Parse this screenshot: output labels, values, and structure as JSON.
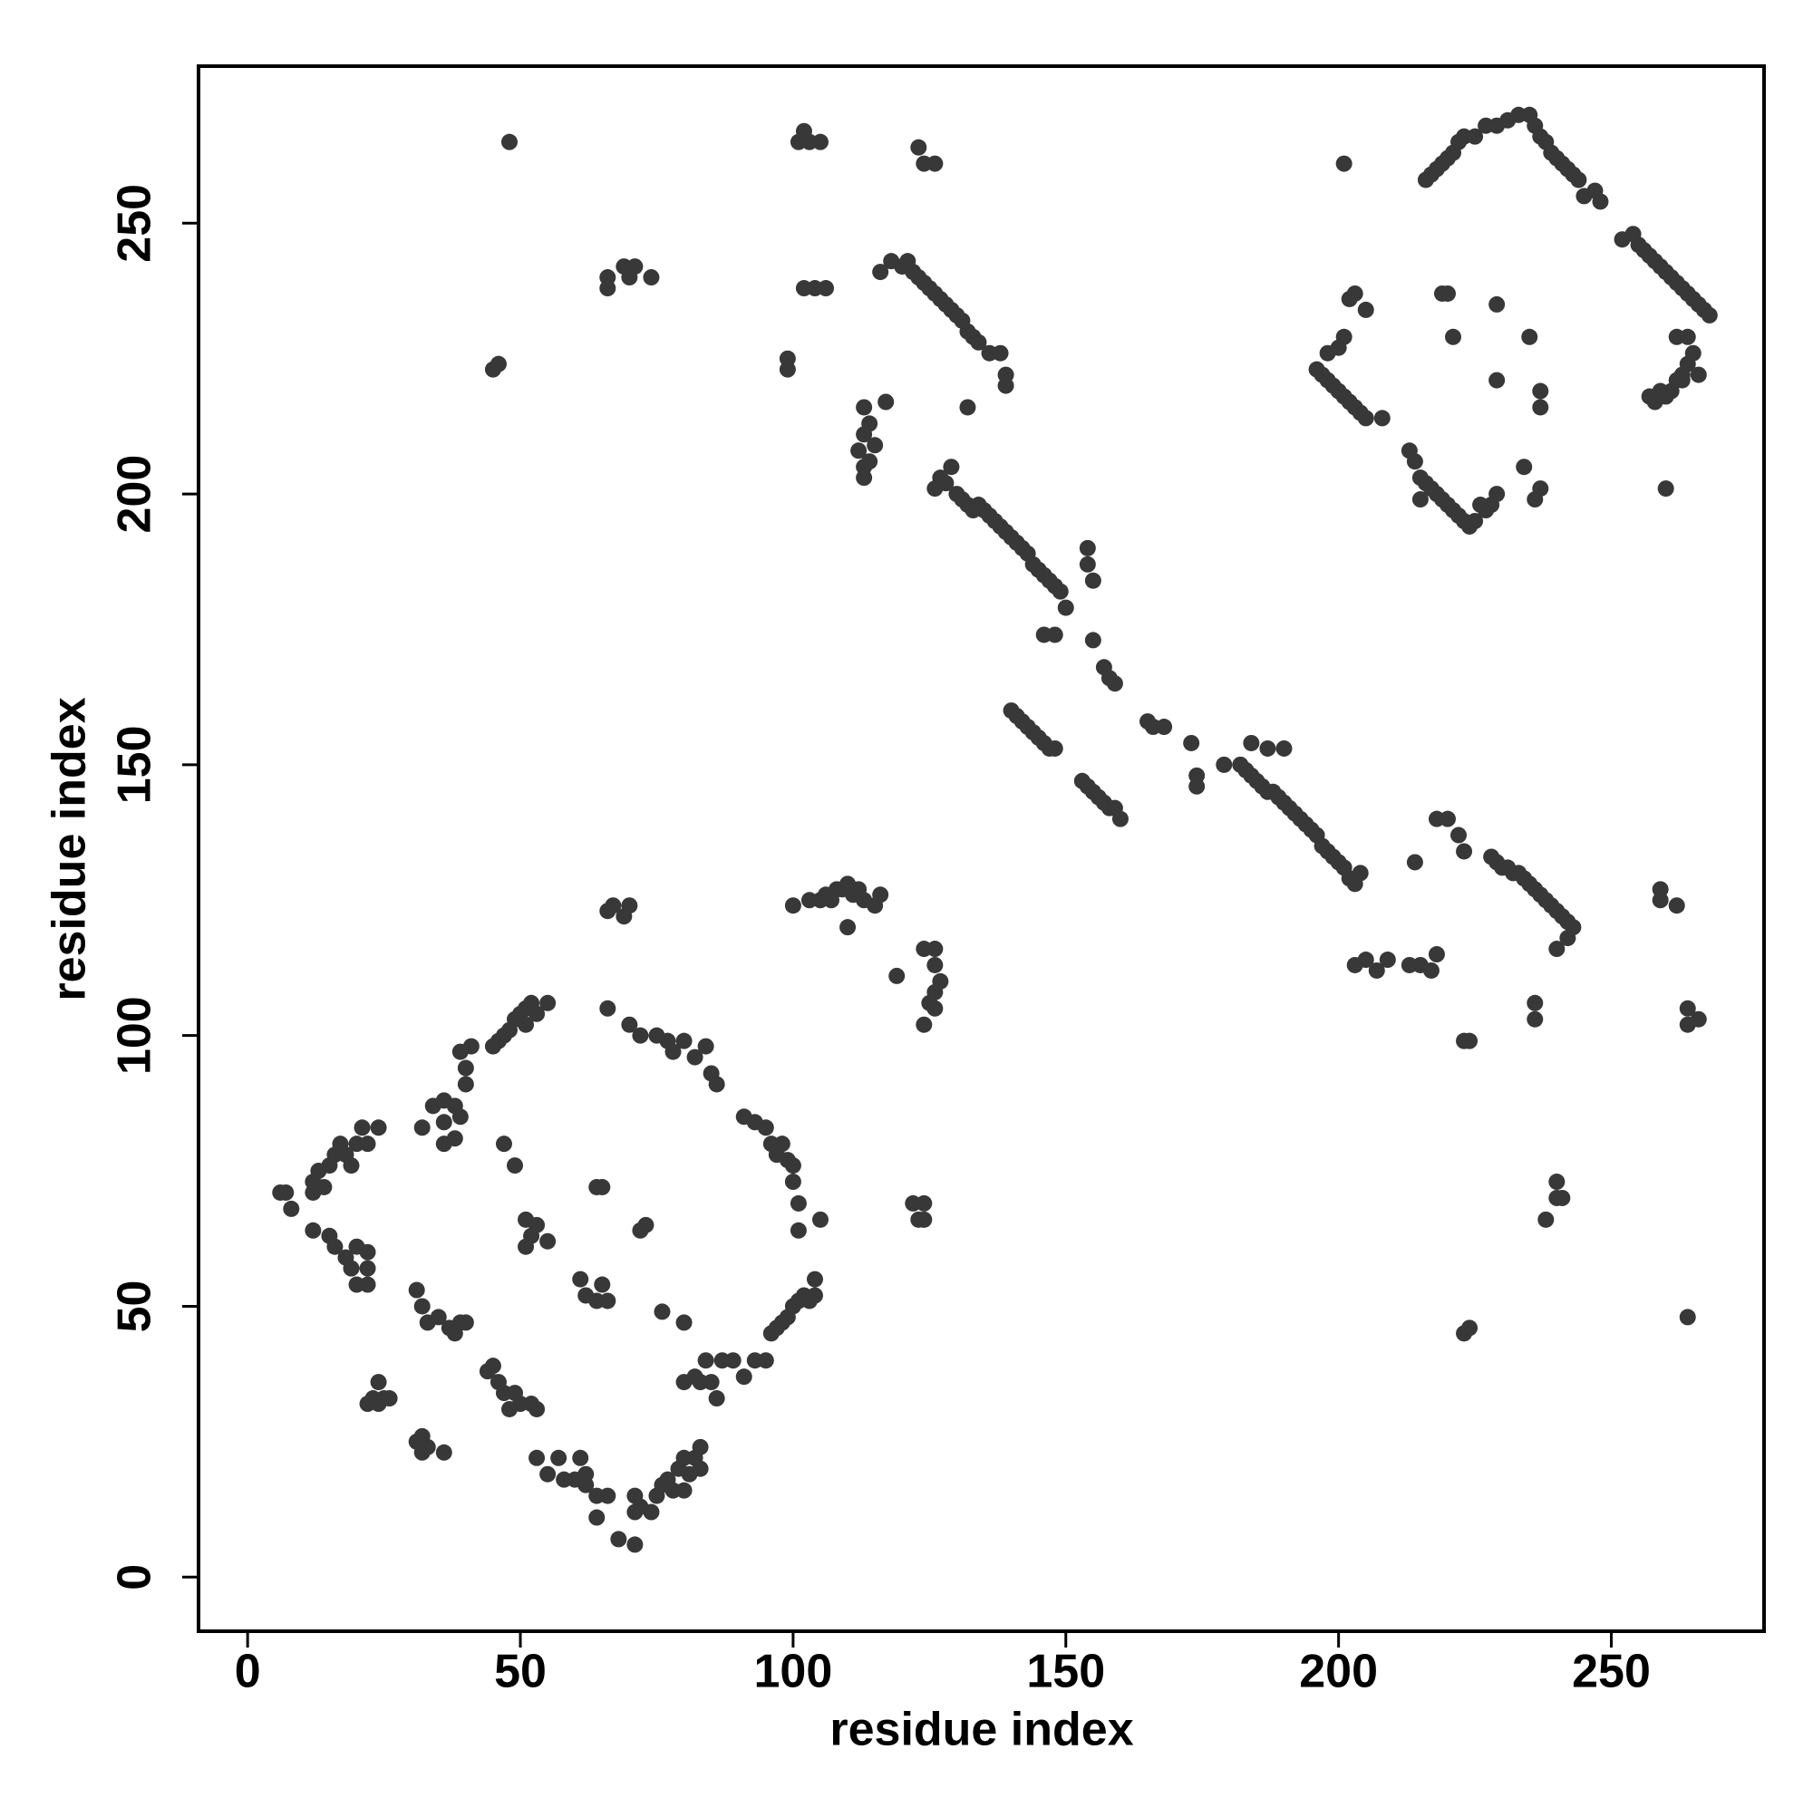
{
  "chart_data": {
    "type": "scatter",
    "xlabel": "residue index",
    "ylabel": "residue index",
    "xlim": [
      -9,
      278
    ],
    "ylim": [
      -10,
      279
    ],
    "xticks": [
      0,
      50,
      100,
      150,
      200,
      250
    ],
    "yticks": [
      0,
      50,
      100,
      150,
      200,
      250
    ],
    "grid": false,
    "color": "#383838",
    "series": [
      {
        "x": [
          6,
          7,
          8,
          12,
          12,
          12,
          13,
          14,
          15,
          16,
          17,
          18,
          19,
          20,
          21,
          22,
          24
        ],
        "y": [
          71,
          71,
          68,
          64,
          71,
          73,
          75,
          72,
          76,
          78,
          80,
          78,
          76,
          80,
          83,
          80,
          83
        ]
      },
      {
        "x": [
          15,
          16,
          18,
          19,
          20,
          22,
          22,
          22,
          20,
          23,
          24,
          25,
          22,
          24,
          26
        ],
        "y": [
          63,
          61,
          59,
          57,
          54,
          57,
          54,
          60,
          61,
          33,
          32,
          33,
          32,
          36,
          33
        ]
      },
      {
        "x": [
          31,
          32,
          33,
          35,
          37,
          38,
          39,
          40,
          31,
          32,
          33,
          36,
          32
        ],
        "y": [
          53,
          50,
          47,
          48,
          46,
          45,
          47,
          47,
          25,
          23,
          24,
          23,
          26
        ]
      },
      {
        "x": [
          44,
          45,
          46,
          47,
          48,
          50,
          49,
          53,
          52,
          53,
          55,
          57,
          58,
          60,
          61,
          62,
          62,
          64,
          64,
          66
        ],
        "y": [
          38,
          39,
          36,
          34,
          31,
          32,
          34,
          31,
          32,
          22,
          19,
          22,
          18,
          18,
          22,
          19,
          17,
          15,
          11,
          15
        ]
      },
      {
        "x": [
          68,
          71,
          71,
          71,
          72,
          74,
          75,
          76,
          77,
          78,
          79,
          80,
          81,
          82,
          83,
          83,
          80
        ],
        "y": [
          7,
          6,
          12,
          15,
          13,
          12,
          15,
          17,
          18,
          16,
          20,
          22,
          19,
          22,
          20,
          24,
          16
        ]
      },
      {
        "x": [
          80,
          82,
          83,
          84,
          85,
          86,
          87,
          89,
          91,
          93,
          95,
          96,
          97,
          98,
          99,
          100,
          101,
          102,
          103,
          104,
          104
        ],
        "y": [
          36,
          37,
          36,
          40,
          36,
          33,
          40,
          40,
          37,
          40,
          40,
          45,
          46,
          47,
          48,
          50,
          51,
          52,
          51,
          52,
          55
        ]
      },
      {
        "x": [
          70,
          72,
          75,
          77,
          78,
          80,
          82,
          84,
          85,
          86,
          91,
          93,
          95,
          96,
          97,
          98,
          99,
          100,
          100,
          101,
          101,
          105,
          66
        ],
        "y": [
          102,
          100,
          100,
          99,
          97,
          99,
          96,
          98,
          93,
          91,
          85,
          84,
          83,
          80,
          78,
          80,
          77,
          76,
          73,
          69,
          64,
          66,
          105
        ]
      },
      {
        "x": [
          32,
          34,
          36,
          36,
          38,
          39,
          40,
          40,
          41,
          39,
          38,
          36,
          45,
          46,
          47,
          48,
          49,
          50,
          51,
          52,
          53,
          55,
          51
        ],
        "y": [
          83,
          87,
          84,
          80,
          87,
          85,
          91,
          94,
          98,
          97,
          81,
          88,
          98,
          99,
          100,
          101,
          103,
          104,
          105,
          106,
          104,
          106,
          102
        ]
      },
      {
        "x": [
          47,
          49,
          51,
          52,
          53,
          55,
          51,
          65,
          64,
          72,
          73,
          61,
          62,
          64,
          65,
          66,
          76,
          80,
          66,
          67,
          69,
          70
        ],
        "y": [
          80,
          76,
          66,
          63,
          65,
          62,
          61,
          72,
          72,
          64,
          65,
          55,
          52,
          51,
          54,
          51,
          49,
          47,
          123,
          124,
          122,
          124
        ]
      },
      {
        "x": [
          216,
          217,
          218,
          219,
          220,
          221,
          222,
          223,
          225,
          227,
          229,
          231,
          233,
          235,
          236,
          237,
          238,
          239,
          240,
          241,
          242,
          243,
          244,
          245,
          247,
          248
        ],
        "y": [
          258,
          259,
          260,
          261,
          262,
          263,
          265,
          266,
          266,
          268,
          268,
          269,
          270,
          270,
          268,
          266,
          265,
          263,
          262,
          261,
          260,
          259,
          258,
          255,
          256,
          254
        ]
      },
      {
        "x": [
          252,
          254,
          255,
          256,
          257,
          258,
          259,
          260,
          261,
          262,
          263,
          264,
          265,
          266,
          267,
          268,
          262,
          264,
          257,
          258,
          259,
          260,
          261,
          262,
          263,
          264,
          265,
          266,
          263
        ],
        "y": [
          247,
          248,
          246,
          245,
          244,
          243,
          242,
          241,
          240,
          239,
          238,
          237,
          236,
          235,
          234,
          233,
          229,
          229,
          218,
          217,
          219,
          218,
          219,
          221,
          222,
          224,
          226,
          222,
          221
        ]
      },
      {
        "x": [
          196,
          197,
          198,
          199,
          200,
          201,
          202,
          203,
          204,
          205,
          208,
          198,
          200,
          201,
          202,
          203,
          205
        ],
        "y": [
          223,
          222,
          221,
          220,
          219,
          218,
          217,
          216,
          215,
          214,
          214,
          226,
          227,
          229,
          236,
          237,
          234
        ]
      },
      {
        "x": [
          213,
          214,
          215,
          216,
          217,
          218,
          219,
          220,
          221,
          222,
          223,
          224,
          225,
          226,
          227,
          228,
          229,
          215
        ],
        "y": [
          208,
          206,
          203,
          202,
          201,
          200,
          199,
          198,
          197,
          196,
          195,
          194,
          195,
          198,
          197,
          198,
          200,
          199
        ]
      },
      {
        "x": [
          219,
          220,
          221,
          229,
          229,
          235,
          237,
          237,
          234,
          237,
          236,
          201,
          260
        ],
        "y": [
          237,
          237,
          229,
          235,
          221,
          229,
          219,
          216,
          205,
          201,
          199,
          261,
          201
        ]
      },
      {
        "x": [
          116,
          118,
          120,
          121,
          122,
          123,
          124,
          125,
          126,
          127,
          128,
          129,
          130,
          131,
          132,
          133,
          134,
          136,
          138,
          139,
          139,
          132,
          113,
          114,
          113,
          115,
          112,
          113,
          114,
          117,
          113
        ],
        "y": [
          241,
          243,
          242,
          243,
          241,
          240,
          239,
          238,
          237,
          236,
          235,
          234,
          233,
          232,
          230,
          229,
          228,
          226,
          226,
          222,
          220,
          216,
          216,
          213,
          211,
          209,
          208,
          205,
          206,
          217,
          203
        ]
      },
      {
        "x": [
          126,
          127,
          128,
          129,
          130,
          131,
          132,
          133,
          134,
          135,
          136,
          137,
          138,
          139,
          140,
          141,
          142,
          143,
          144,
          145,
          146,
          147,
          148,
          149,
          150,
          154,
          154,
          155,
          146,
          148,
          155,
          157,
          158,
          159
        ],
        "y": [
          201,
          203,
          202,
          205,
          200,
          199,
          198,
          197,
          198,
          197,
          196,
          195,
          194,
          193,
          192,
          191,
          190,
          189,
          187,
          186,
          185,
          184,
          183,
          182,
          179,
          190,
          187,
          184,
          174,
          174,
          173,
          168,
          166,
          165
        ]
      },
      {
        "x": [
          140,
          141,
          142,
          143,
          144,
          145,
          146,
          147,
          148,
          153,
          154,
          155,
          156,
          157,
          158,
          159,
          160,
          165,
          166,
          168,
          173,
          174,
          174,
          179
        ],
        "y": [
          160,
          159,
          158,
          157,
          156,
          155,
          154,
          153,
          153,
          147,
          146,
          145,
          144,
          143,
          142,
          142,
          140,
          158,
          157,
          157,
          154,
          148,
          146,
          150
        ]
      },
      {
        "x": [
          182,
          183,
          184,
          185,
          186,
          187,
          188,
          189,
          190,
          191,
          192,
          193,
          194,
          195,
          196,
          197,
          198,
          199,
          200,
          201,
          202,
          203,
          204,
          184,
          187,
          190
        ],
        "y": [
          150,
          149,
          148,
          147,
          146,
          145,
          145,
          144,
          143,
          142,
          141,
          140,
          139,
          138,
          137,
          135,
          134,
          133,
          132,
          131,
          129,
          128,
          130,
          154,
          153,
          153
        ]
      },
      {
        "x": [
          218,
          220,
          222,
          223,
          228,
          229,
          230,
          231,
          232,
          233,
          234,
          235,
          236,
          237,
          238,
          239,
          240,
          241,
          242,
          243,
          242,
          240,
          214,
          203,
          205,
          207,
          209,
          213,
          215,
          217,
          218
        ],
        "y": [
          140,
          140,
          137,
          134,
          133,
          132,
          131,
          131,
          130,
          130,
          129,
          128,
          127,
          126,
          125,
          124,
          123,
          122,
          121,
          120,
          118,
          116,
          132,
          113,
          114,
          112,
          114,
          113,
          113,
          112,
          115
        ]
      },
      {
        "x": [
          236,
          236,
          223,
          224,
          240,
          240,
          241,
          238,
          223,
          224,
          259,
          259,
          262,
          264,
          264,
          266,
          264
        ],
        "y": [
          106,
          103,
          99,
          99,
          73,
          70,
          70,
          66,
          45,
          46,
          127,
          125,
          124,
          105,
          102,
          103,
          48
        ]
      },
      {
        "x": [
          100,
          103,
          105,
          106,
          107,
          108,
          109,
          110,
          111,
          112,
          113,
          115,
          116,
          110,
          119,
          124,
          126,
          126,
          127,
          126,
          125,
          124,
          126,
          122,
          124,
          123,
          124
        ],
        "y": [
          124,
          125,
          125,
          126,
          125,
          127,
          127,
          128,
          126,
          127,
          125,
          124,
          126,
          120,
          111,
          116,
          116,
          113,
          110,
          108,
          106,
          102,
          105,
          69,
          69,
          66,
          66
        ]
      },
      {
        "x": [
          101,
          102,
          103,
          105,
          123,
          124,
          126,
          48,
          45,
          46,
          66,
          66,
          69,
          70,
          71,
          74,
          99,
          99,
          102,
          104,
          106
        ],
        "y": [
          265,
          267,
          265,
          265,
          264,
          261,
          261,
          265,
          223,
          224,
          238,
          240,
          242,
          240,
          242,
          240,
          225,
          223,
          238,
          238,
          238
        ]
      }
    ]
  }
}
